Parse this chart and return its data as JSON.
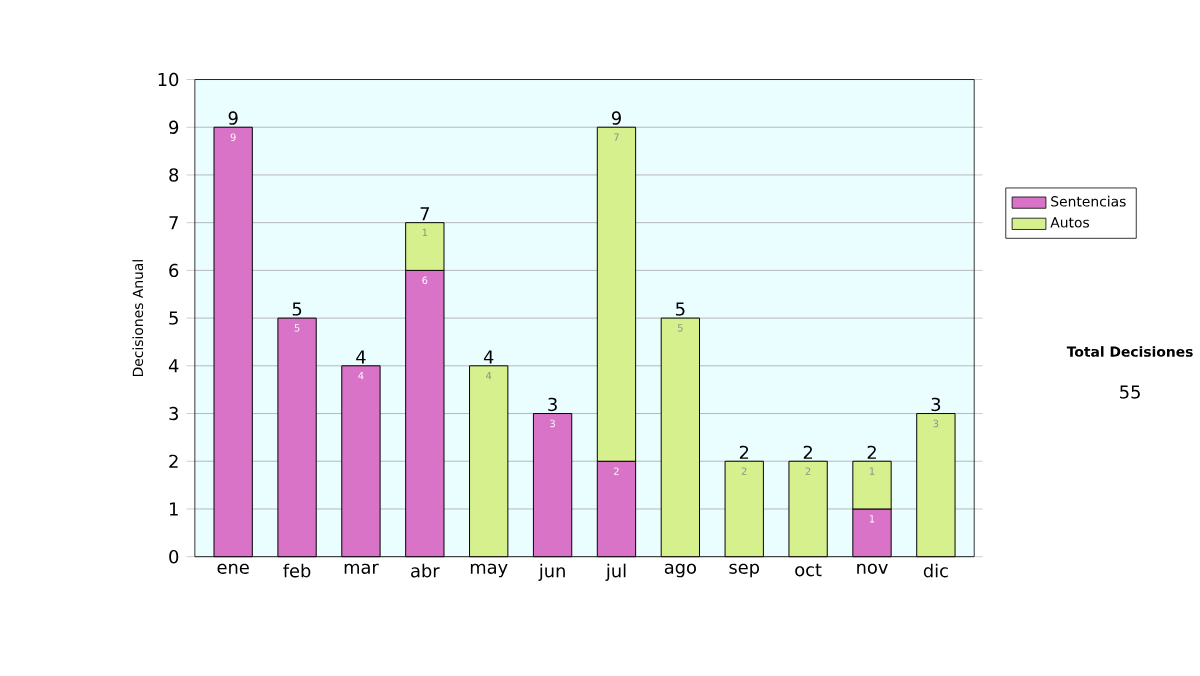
{
  "chart_data": {
    "type": "bar",
    "stacked": true,
    "ylabel": "Decisiones Anual",
    "categories": [
      "ene",
      "feb",
      "mar",
      "abr",
      "may",
      "jun",
      "jul",
      "ago",
      "sep",
      "oct",
      "nov",
      "dic"
    ],
    "series": [
      {
        "name": "Sentencias",
        "color": "#d873c8",
        "values": [
          9,
          5,
          4,
          6,
          0,
          3,
          2,
          0,
          0,
          0,
          1,
          0
        ],
        "value_labels": [
          "9",
          "5",
          "4",
          "6",
          null,
          "3",
          "2",
          null,
          null,
          null,
          "1",
          null
        ]
      },
      {
        "name": "Autos",
        "color": "#d6f08e",
        "values": [
          0,
          0,
          0,
          1,
          4,
          0,
          7,
          5,
          2,
          2,
          1,
          3
        ],
        "value_labels": [
          null,
          null,
          null,
          "1",
          "4",
          null,
          "7",
          "5",
          "2",
          "2",
          "1",
          "3"
        ]
      }
    ],
    "totals": [
      "9",
      "5",
      "4",
      "7",
      "4",
      "3",
      "9",
      "5",
      "2",
      "2",
      "2",
      "3"
    ],
    "ylim": [
      0,
      10
    ],
    "yticks": [
      0,
      1,
      2,
      3,
      4,
      5,
      6,
      7,
      8,
      9,
      10
    ],
    "grid": "y",
    "legend": "right",
    "annotations": [
      "Total Decisiones",
      "55"
    ]
  }
}
